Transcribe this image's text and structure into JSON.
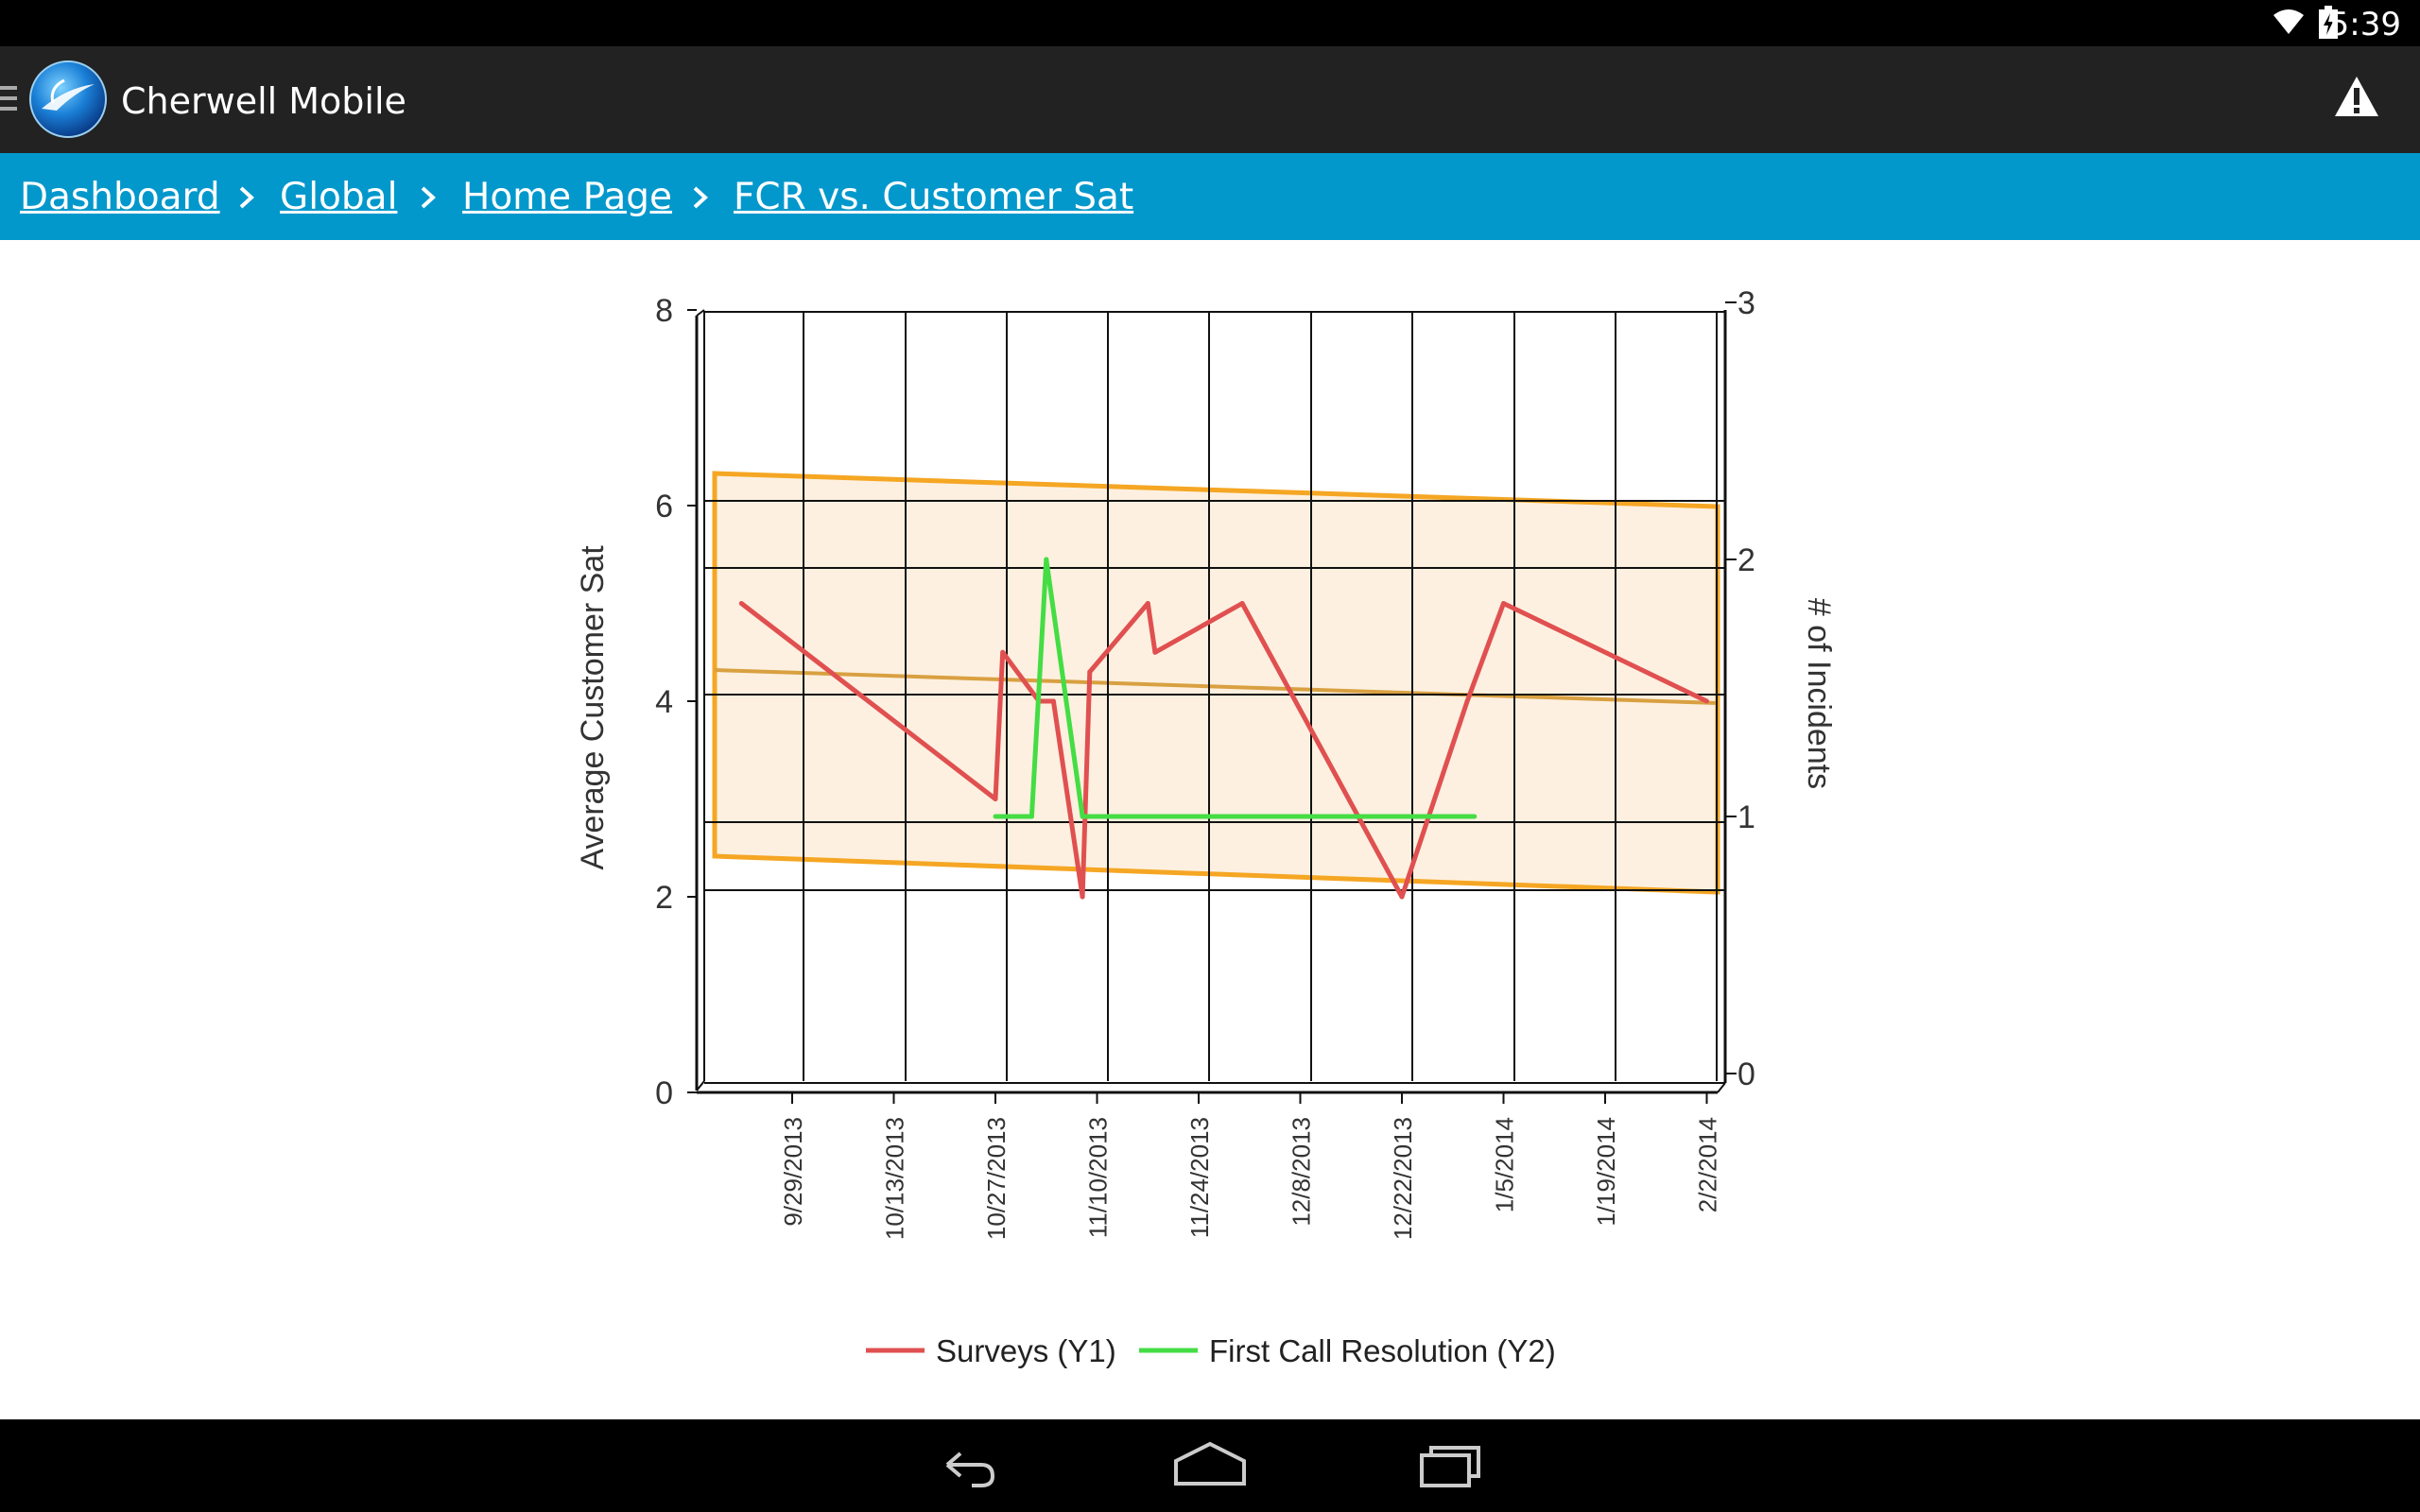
{
  "status_bar": {
    "time": "5:39"
  },
  "app_bar": {
    "title": "Cherwell Mobile"
  },
  "breadcrumb": {
    "items": [
      "Dashboard",
      "Global",
      "Home Page",
      "FCR vs. Customer Sat"
    ]
  },
  "chart_data": {
    "type": "line",
    "y_label": "Average Customer Sat",
    "y2_label": "# of Incidents",
    "ylim": [
      0,
      8
    ],
    "y2lim": [
      0,
      3
    ],
    "y_ticks": [
      "0",
      "2",
      "4",
      "6",
      "8"
    ],
    "y2_ticks": [
      "0",
      "1",
      "2",
      "3"
    ],
    "x_ticks": [
      "9/29/2013",
      "10/13/2013",
      "10/27/2013",
      "11/10/2013",
      "11/24/2013",
      "12/8/2013",
      "12/22/2013",
      "1/5/2014",
      "1/19/2014",
      "2/2/2014"
    ],
    "series": [
      {
        "name": "Surveys (Y1)",
        "axis": "y",
        "color": "#e05050",
        "points": [
          [
            "9/22/2013",
            5.0
          ],
          [
            "10/27/2013",
            3.0
          ],
          [
            "10/28/2013",
            4.5
          ],
          [
            "11/2/2013",
            4.0
          ],
          [
            "11/4/2013",
            4.0
          ],
          [
            "11/8/2013",
            2.0
          ],
          [
            "11/9/2013",
            4.3
          ],
          [
            "11/17/2013",
            5.0
          ],
          [
            "11/18/2013",
            4.5
          ],
          [
            "11/30/2013",
            5.0
          ],
          [
            "12/22/2013",
            2.0
          ],
          [
            "12/31/2013",
            4.0
          ],
          [
            "1/5/2014",
            5.0
          ],
          [
            "2/2/2014",
            4.0
          ]
        ]
      },
      {
        "name": "First Call Resolution (Y2)",
        "axis": "y2",
        "color": "#44dd44",
        "points": [
          [
            "10/27/2013",
            1.0
          ],
          [
            "11/1/2013",
            1.0
          ],
          [
            "11/3/2013",
            2.0
          ],
          [
            "11/8/2013",
            1.0
          ],
          [
            "1/1/2014",
            1.0
          ]
        ]
      }
    ],
    "band_color": "#f5a623",
    "grid": true,
    "legend_position": "bottom"
  },
  "nav_bar": {
    "back": "back-icon",
    "home": "home-icon",
    "recents": "recents-icon"
  }
}
